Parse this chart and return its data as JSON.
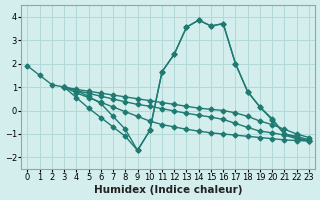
{
  "bg_color": "#d4eeed",
  "grid_color": "#b2d8d8",
  "line_color": "#1f7a72",
  "line_width": 1.0,
  "marker": "D",
  "marker_size": 2.5,
  "xlabel": "Humidex (Indice chaleur)",
  "xlabel_fontsize": 7.5,
  "tick_fontsize": 6,
  "xlim": [
    -0.5,
    23.5
  ],
  "ylim": [
    -2.5,
    4.5
  ],
  "yticks": [
    -2,
    -1,
    0,
    1,
    2,
    3,
    4
  ],
  "xticks": [
    0,
    1,
    2,
    3,
    4,
    5,
    6,
    7,
    8,
    9,
    10,
    11,
    12,
    13,
    14,
    15,
    16,
    17,
    18,
    19,
    20,
    21,
    22,
    23
  ]
}
